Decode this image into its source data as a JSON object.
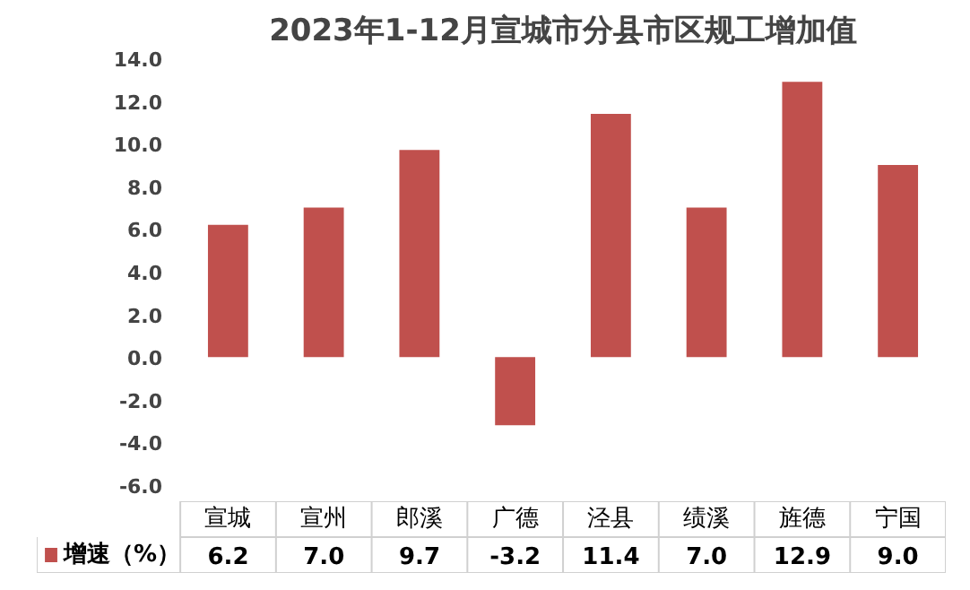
{
  "chart_data": {
    "type": "bar",
    "title": "2023年1-12月宣城市分县市区规工增加值",
    "categories": [
      "宣城",
      "宣州",
      "郎溪",
      "广德",
      "泾县",
      "绩溪",
      "旌德",
      "宁国"
    ],
    "series": [
      {
        "name": "增速（%）",
        "color": "#c0504d",
        "values": [
          6.2,
          7.0,
          9.7,
          -3.2,
          11.4,
          7.0,
          12.9,
          9.0
        ],
        "value_labels": [
          "6.2",
          "7.0",
          "9.7",
          "-3.2",
          "11.4",
          "7.0",
          "12.9",
          "9.0"
        ]
      }
    ],
    "ylim": [
      -6,
      14
    ],
    "yticks": [
      {
        "value": -6,
        "label": "-6.0"
      },
      {
        "value": -4,
        "label": "-4.0"
      },
      {
        "value": -2,
        "label": "-2.0"
      },
      {
        "value": 0,
        "label": "0.0"
      },
      {
        "value": 2,
        "label": "2.0"
      },
      {
        "value": 4,
        "label": "4.0"
      },
      {
        "value": 6,
        "label": "6.0"
      },
      {
        "value": 8,
        "label": "8.0"
      },
      {
        "value": 10,
        "label": "10.0"
      },
      {
        "value": 12,
        "label": "12.0"
      },
      {
        "value": 14,
        "label": "14.0"
      }
    ],
    "grid": false,
    "legend": "bottom"
  }
}
